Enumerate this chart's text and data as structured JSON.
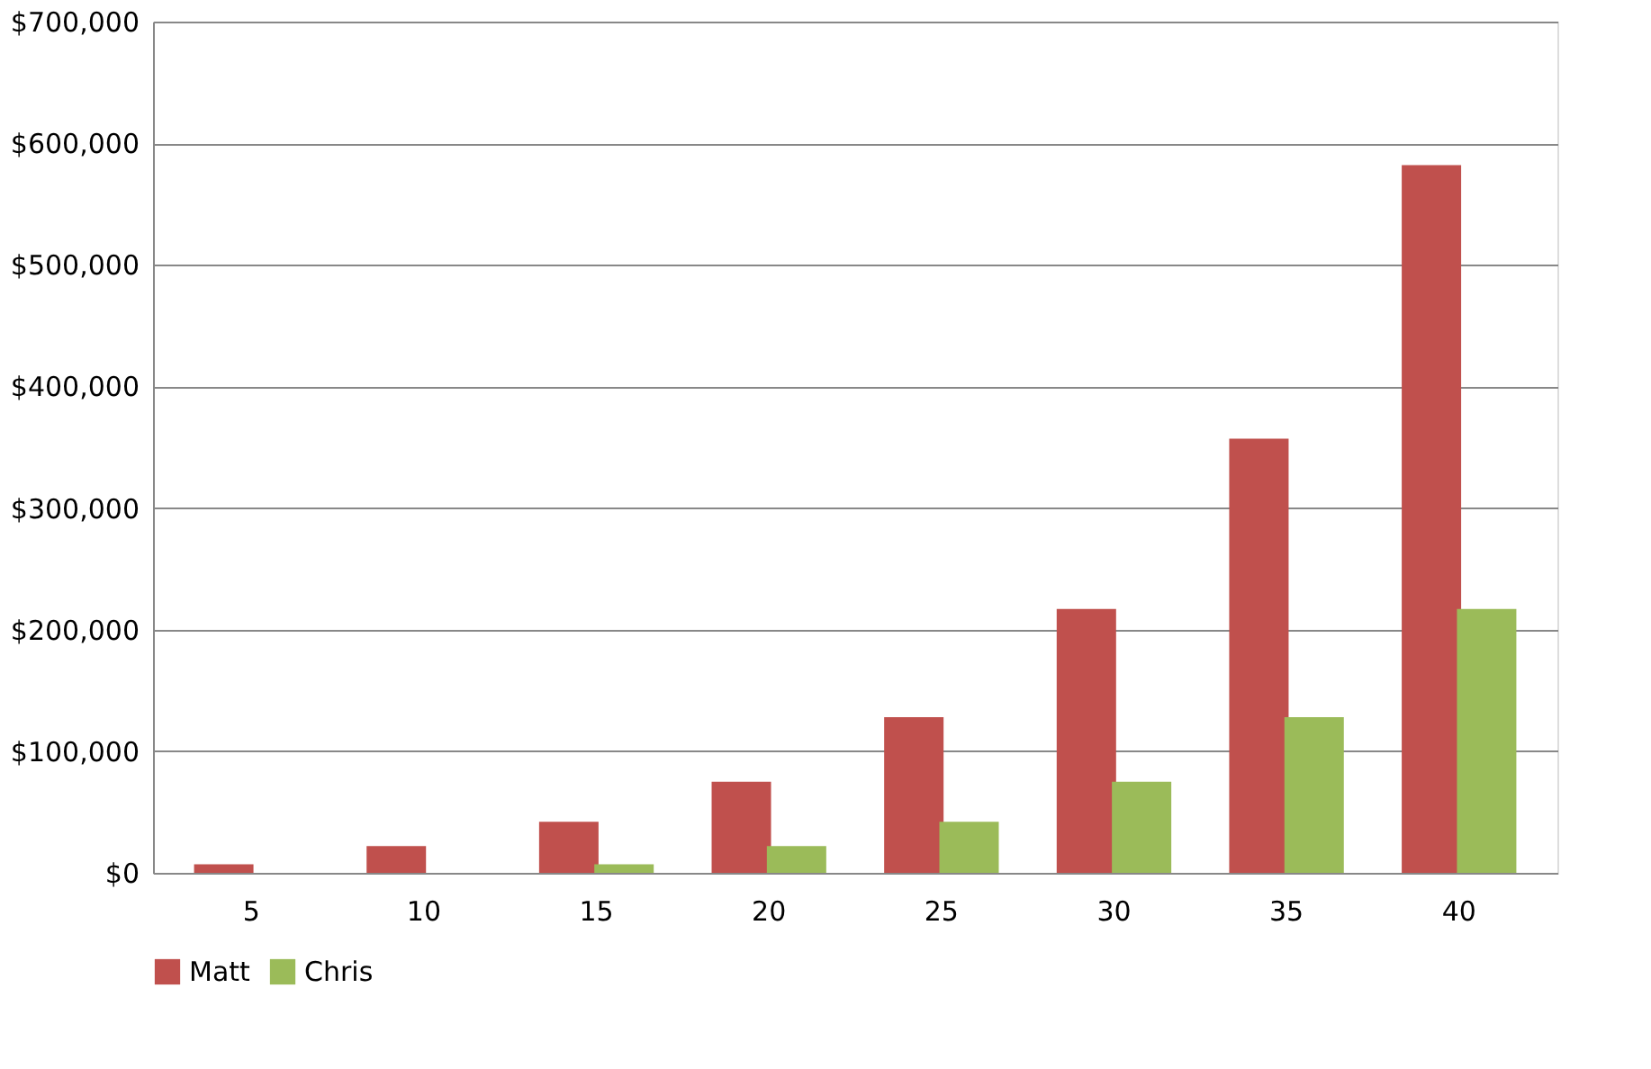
{
  "chart_data": {
    "type": "bar",
    "categories": [
      "5",
      "10",
      "15",
      "20",
      "25",
      "30",
      "35",
      "40"
    ],
    "series": [
      {
        "name": "Matt",
        "color": "#c0504d",
        "values": [
          7000,
          22000,
          42000,
          75000,
          128000,
          217000,
          357000,
          582000
        ]
      },
      {
        "name": "Chris",
        "color": "#9bbb59",
        "values": [
          0,
          0,
          7000,
          22000,
          42000,
          75000,
          128000,
          217000
        ]
      }
    ],
    "ylim": [
      0,
      700000
    ],
    "yticks": [
      {
        "value": 0,
        "label": "$0"
      },
      {
        "value": 100000,
        "label": "$100,000"
      },
      {
        "value": 200000,
        "label": "$200,000"
      },
      {
        "value": 300000,
        "label": "$300,000"
      },
      {
        "value": 400000,
        "label": "$400,000"
      },
      {
        "value": 500000,
        "label": "$500,000"
      },
      {
        "value": 600000,
        "label": "$600,000"
      },
      {
        "value": 700000,
        "label": "$700,000"
      }
    ],
    "grid": "y",
    "legend": "bottom"
  }
}
